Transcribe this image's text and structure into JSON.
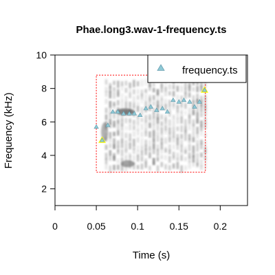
{
  "chart_data": {
    "type": "scatter",
    "title": "Phae.long3.wav-1-frequency.ts",
    "xlabel": "Time (s)",
    "ylabel": "Frequency (kHz)",
    "xlim": [
      0,
      0.233
    ],
    "ylim": [
      1,
      10
    ],
    "xticks": [
      0,
      0.05,
      0.1,
      0.15,
      0.2
    ],
    "xtick_labels": [
      "0",
      "0.05",
      "0.1",
      "0.15",
      "0.2"
    ],
    "yticks": [
      2,
      4,
      6,
      8,
      10
    ],
    "ytick_labels": [
      "2",
      "4",
      "6",
      "8",
      "10"
    ],
    "grid": false,
    "legend": {
      "position": "top-right",
      "entries": [
        "frequency.ts"
      ]
    },
    "selection_box": {
      "x0": 0.05,
      "x1": 0.182,
      "y0": 3.0,
      "y1": 8.8,
      "color": "#ff0000"
    },
    "series": [
      {
        "name": "frequency.ts",
        "marker": "triangle",
        "color": "#8ec9d6",
        "x": [
          0.05,
          0.057,
          0.064,
          0.07,
          0.076,
          0.083,
          0.09,
          0.096,
          0.103,
          0.11,
          0.116,
          0.123,
          0.13,
          0.136,
          0.143,
          0.15,
          0.156,
          0.163,
          0.169,
          0.175,
          0.181
        ],
        "y": [
          5.7,
          4.9,
          5.8,
          6.6,
          6.6,
          6.5,
          6.5,
          6.5,
          6.4,
          6.8,
          6.9,
          6.7,
          6.8,
          6.6,
          7.3,
          7.2,
          7.3,
          7.2,
          6.9,
          7.2,
          7.9
        ]
      }
    ],
    "highlighted_points": [
      {
        "x": 0.057,
        "y": 4.9
      },
      {
        "x": 0.181,
        "y": 7.9
      }
    ],
    "highlight_color": "#ffff00"
  }
}
